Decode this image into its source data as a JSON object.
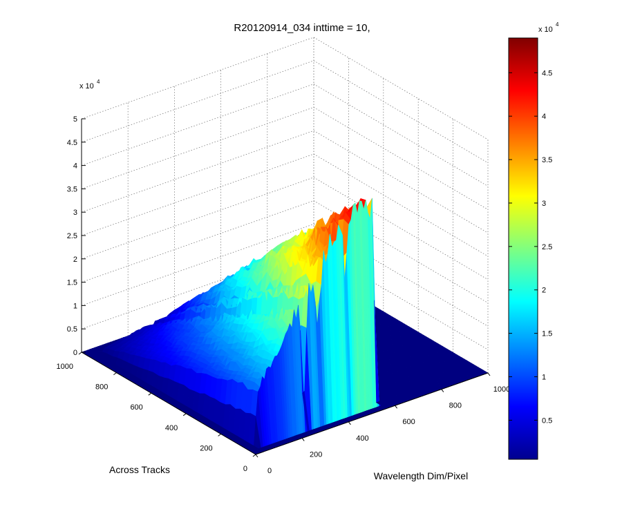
{
  "chart_data": {
    "type": "surface",
    "title": "R20120914_034 inttime = 10,",
    "xlabel": "Wavelength Dim/Pixel",
    "ylabel": "Across Tracks",
    "zlabel": "",
    "xlim": [
      0,
      1000
    ],
    "ylim": [
      0,
      1000
    ],
    "zlim": [
      0,
      50000
    ],
    "x_ticks": [
      "0",
      "200",
      "400",
      "600",
      "800",
      "1000"
    ],
    "y_ticks": [
      "0",
      "200",
      "400",
      "600",
      "800",
      "1000"
    ],
    "z_ticks": [
      "0",
      "0.5",
      "1",
      "1.5",
      "2",
      "2.5",
      "3",
      "3.5",
      "4",
      "4.5",
      "5"
    ],
    "z_exponent": "x 10",
    "z_exponent_power": "4",
    "grid": true,
    "colormap": "jet",
    "colorbar": {
      "range": [
        500,
        49000
      ],
      "ticks": [
        "0.5",
        "1",
        "1.5",
        "2",
        "2.5",
        "3",
        "3.5",
        "4",
        "4.5"
      ],
      "tick_values": [
        0.5,
        1,
        1.5,
        2,
        2.5,
        3,
        3.5,
        4,
        4.5
      ],
      "exponent": "x 10",
      "exponent_power": "4",
      "placement": "right"
    },
    "surface_profile": {
      "note_free": true,
      "across_track_range": [
        0,
        1000
      ],
      "wavelength_range": [
        0,
        1000
      ],
      "wavelength_active_start": 40,
      "wavelength_active_end": 560,
      "gap_wavelength": 250,
      "peak_value_at_high_wavelength_side": 49000,
      "peak_value_at_low_wavelength_side": 30000
    }
  }
}
